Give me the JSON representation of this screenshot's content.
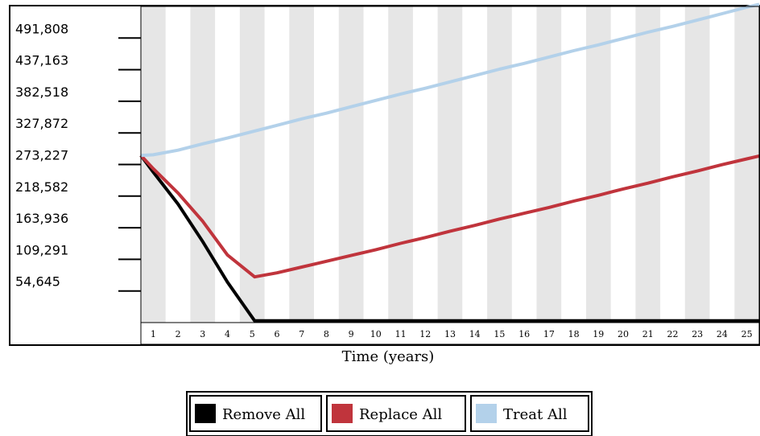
{
  "chart_data": {
    "type": "line",
    "title": "",
    "xlabel": "Time (years)",
    "ylabel": "",
    "x": [
      1,
      2,
      3,
      4,
      5,
      6,
      7,
      8,
      9,
      10,
      11,
      12,
      13,
      14,
      15,
      16,
      17,
      18,
      19,
      20,
      21,
      22,
      23,
      24,
      25
    ],
    "xlim": [
      0.5,
      25.5
    ],
    "ylim": [
      0,
      546454
    ],
    "yticks": [
      54645,
      109291,
      163936,
      218582,
      273227,
      327872,
      382518,
      437163,
      491808
    ],
    "ytick_labels": [
      "54,645",
      "109,291",
      "163,936",
      "218,582",
      "273,227",
      "327,872",
      "382,518",
      "437,163",
      "491,808"
    ],
    "xtick_labels": [
      "1",
      "2",
      "3",
      "4",
      "5",
      "6",
      "7",
      "8",
      "9",
      "10",
      "11",
      "12",
      "13",
      "14",
      "15",
      "16",
      "17",
      "18",
      "19",
      "20",
      "21",
      "22",
      "23",
      "24",
      "25"
    ],
    "grid": "alternating vertical bands",
    "legend": "bottom-center",
    "series": [
      {
        "name": "Remove All",
        "color": "#000000",
        "points": [
          [
            0.5,
            289000
          ],
          [
            1,
            260000
          ],
          [
            2,
            205000
          ],
          [
            3,
            140000
          ],
          [
            4,
            70000
          ],
          [
            5.1,
            3000
          ],
          [
            25.5,
            3000
          ]
        ]
      },
      {
        "name": "Replace All",
        "color": "#c0343c",
        "points": [
          [
            0.5,
            289000
          ],
          [
            1,
            266000
          ],
          [
            2,
            224000
          ],
          [
            3,
            175000
          ],
          [
            4,
            117000
          ],
          [
            5.1,
            79000
          ],
          [
            6,
            86000
          ],
          [
            7,
            96000
          ],
          [
            8,
            106000
          ],
          [
            9,
            116000
          ],
          [
            10,
            126000
          ],
          [
            11,
            137000
          ],
          [
            12,
            147000
          ],
          [
            13,
            158000
          ],
          [
            14,
            168000
          ],
          [
            15,
            179000
          ],
          [
            16,
            189000
          ],
          [
            17,
            199000
          ],
          [
            18,
            210000
          ],
          [
            19,
            220000
          ],
          [
            20,
            231000
          ],
          [
            21,
            241000
          ],
          [
            22,
            252000
          ],
          [
            23,
            262000
          ],
          [
            24,
            273000
          ],
          [
            25,
            283000
          ],
          [
            25.5,
            288000
          ]
        ]
      },
      {
        "name": "Treat All",
        "color": "#b3d1ea",
        "points": [
          [
            0.5,
            289000
          ],
          [
            1,
            290000
          ],
          [
            2,
            298000
          ],
          [
            3,
            309000
          ],
          [
            4,
            319000
          ],
          [
            5,
            330000
          ],
          [
            6,
            341000
          ],
          [
            7,
            352000
          ],
          [
            8,
            362000
          ],
          [
            9,
            373000
          ],
          [
            10,
            384000
          ],
          [
            11,
            395000
          ],
          [
            12,
            405000
          ],
          [
            13,
            416000
          ],
          [
            14,
            427000
          ],
          [
            15,
            438000
          ],
          [
            16,
            448000
          ],
          [
            17,
            459000
          ],
          [
            18,
            470000
          ],
          [
            19,
            480000
          ],
          [
            20,
            491000
          ],
          [
            21,
            502000
          ],
          [
            22,
            512000
          ],
          [
            23,
            523000
          ],
          [
            24,
            534000
          ],
          [
            25,
            545000
          ],
          [
            25.5,
            550000
          ]
        ]
      }
    ]
  }
}
